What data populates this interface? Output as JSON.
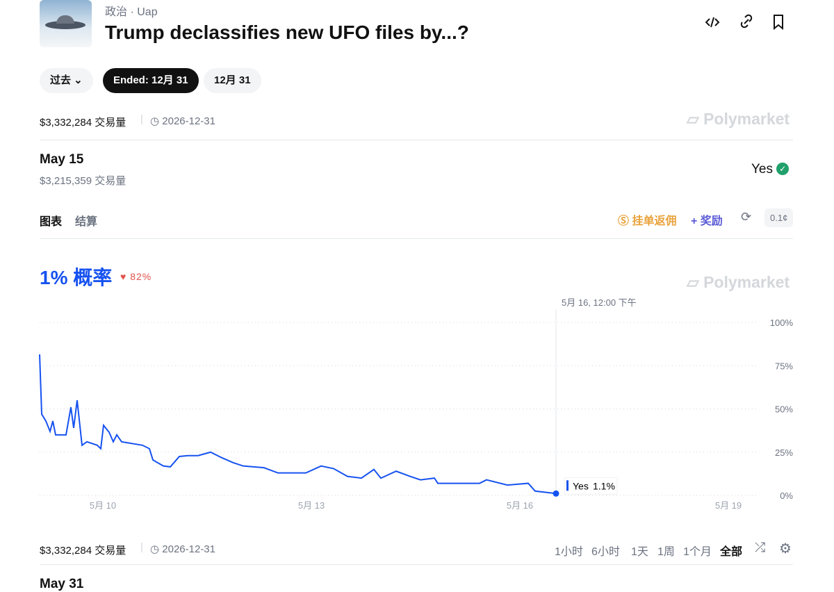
{
  "header": {
    "category": "政治",
    "tag": "Uap",
    "title": "Trump declassifies new UFO files by...?"
  },
  "filters": [
    "过去",
    "Ended: 12月 31",
    "12月 31"
  ],
  "summary": {
    "volume": "$3,332,284 交易量",
    "end_date": "2026-12-31"
  },
  "brand": "Polymarket",
  "market": {
    "name": "May 15",
    "volume": "$3,215,359 交易量",
    "outcome": "Yes"
  },
  "tabs": [
    "图表",
    "结算"
  ],
  "actions": {
    "rebate": "挂单返佣",
    "rewards": "奖励",
    "tick_size": "0.1¢"
  },
  "probability": {
    "headline": "1% 概率",
    "change": "82%"
  },
  "chart_data": {
    "type": "line",
    "x": [
      9.09,
      9.12,
      9.18,
      9.24,
      9.28,
      9.32,
      9.47,
      9.54,
      9.58,
      9.63,
      9.7,
      9.77,
      9.92,
      9.97,
      10.01,
      10.09,
      10.15,
      10.2,
      10.27,
      10.57,
      10.67,
      10.72,
      10.87,
      10.97,
      11.1,
      11.22,
      11.37,
      11.55,
      11.7,
      11.87,
      12.02,
      12.32,
      12.52,
      12.92,
      13.14,
      13.32,
      13.52,
      13.72,
      13.9,
      14.0,
      14.22,
      14.42,
      14.57,
      14.77,
      14.82,
      15.42,
      15.52,
      15.82,
      16.12,
      16.22,
      16.52
    ],
    "series": [
      {
        "name": "Yes",
        "color": "#1652f0",
        "values": [
          81.5,
          47,
          43,
          37,
          43,
          35,
          35,
          51,
          39,
          55,
          29,
          31,
          29,
          27,
          40.5,
          36.5,
          31,
          35,
          31,
          29,
          27,
          20.5,
          17,
          16.5,
          22.5,
          23,
          23,
          25,
          22,
          19,
          17,
          16,
          13,
          13,
          17,
          15.5,
          11,
          10,
          15,
          10,
          14,
          11,
          9,
          10,
          7,
          7,
          9,
          6,
          7,
          2.5,
          1.1
        ]
      }
    ],
    "xlim": [
      9.09,
      19.42
    ],
    "xticks": [
      {
        "value": 10,
        "label": "5月 10"
      },
      {
        "value": 13,
        "label": "5月 13"
      },
      {
        "value": 16,
        "label": "5月 16"
      },
      {
        "value": 19,
        "label": "5月 19"
      }
    ],
    "ylim": [
      0,
      100
    ],
    "yticks": [
      {
        "value": 0,
        "label": "0%"
      },
      {
        "value": 25,
        "label": "25%"
      },
      {
        "value": 50,
        "label": "50%"
      },
      {
        "value": 75,
        "label": "75%"
      },
      {
        "value": 100,
        "label": "100%"
      }
    ],
    "grid": true,
    "hover": {
      "time": "5月 16, 12:00 下午",
      "value_label": "1.1%"
    }
  },
  "footer": {
    "volume": "$3,332,284 交易量",
    "end_date": "2026-12-31",
    "ranges": [
      "1小时",
      "6小时",
      "1天",
      "1周",
      "1个月",
      "全部"
    ],
    "next_market": "May 31"
  }
}
